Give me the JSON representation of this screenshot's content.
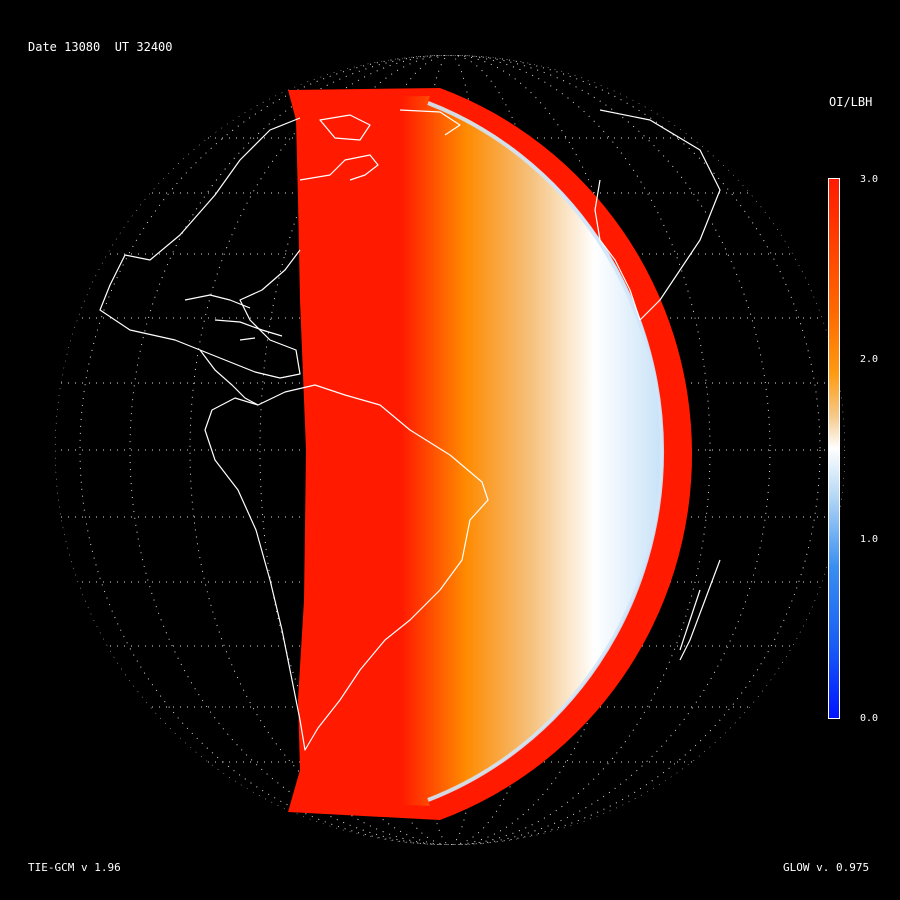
{
  "header": {
    "date_label": "Date 13080  UT 32400"
  },
  "legend": {
    "quantity": "OI/LBH",
    "ticks": [
      "3.0",
      "2.0",
      "1.0",
      "0.0"
    ],
    "colors": {
      "max": "#ff1a00",
      "high": "#ff8c00",
      "mid": "#f8f8f8",
      "low": "#1e7be6",
      "min": "#0014ff"
    }
  },
  "footer": {
    "model_left": "TIE-GCM v 1.96",
    "model_right": "GLOW v. 0.975"
  },
  "map": {
    "projection": "orthographic",
    "region": "Americas / South America",
    "overlay": "dayside OI/LBH ratio",
    "grid": "dotted lat-lon graticule",
    "coastlines": "white"
  }
}
